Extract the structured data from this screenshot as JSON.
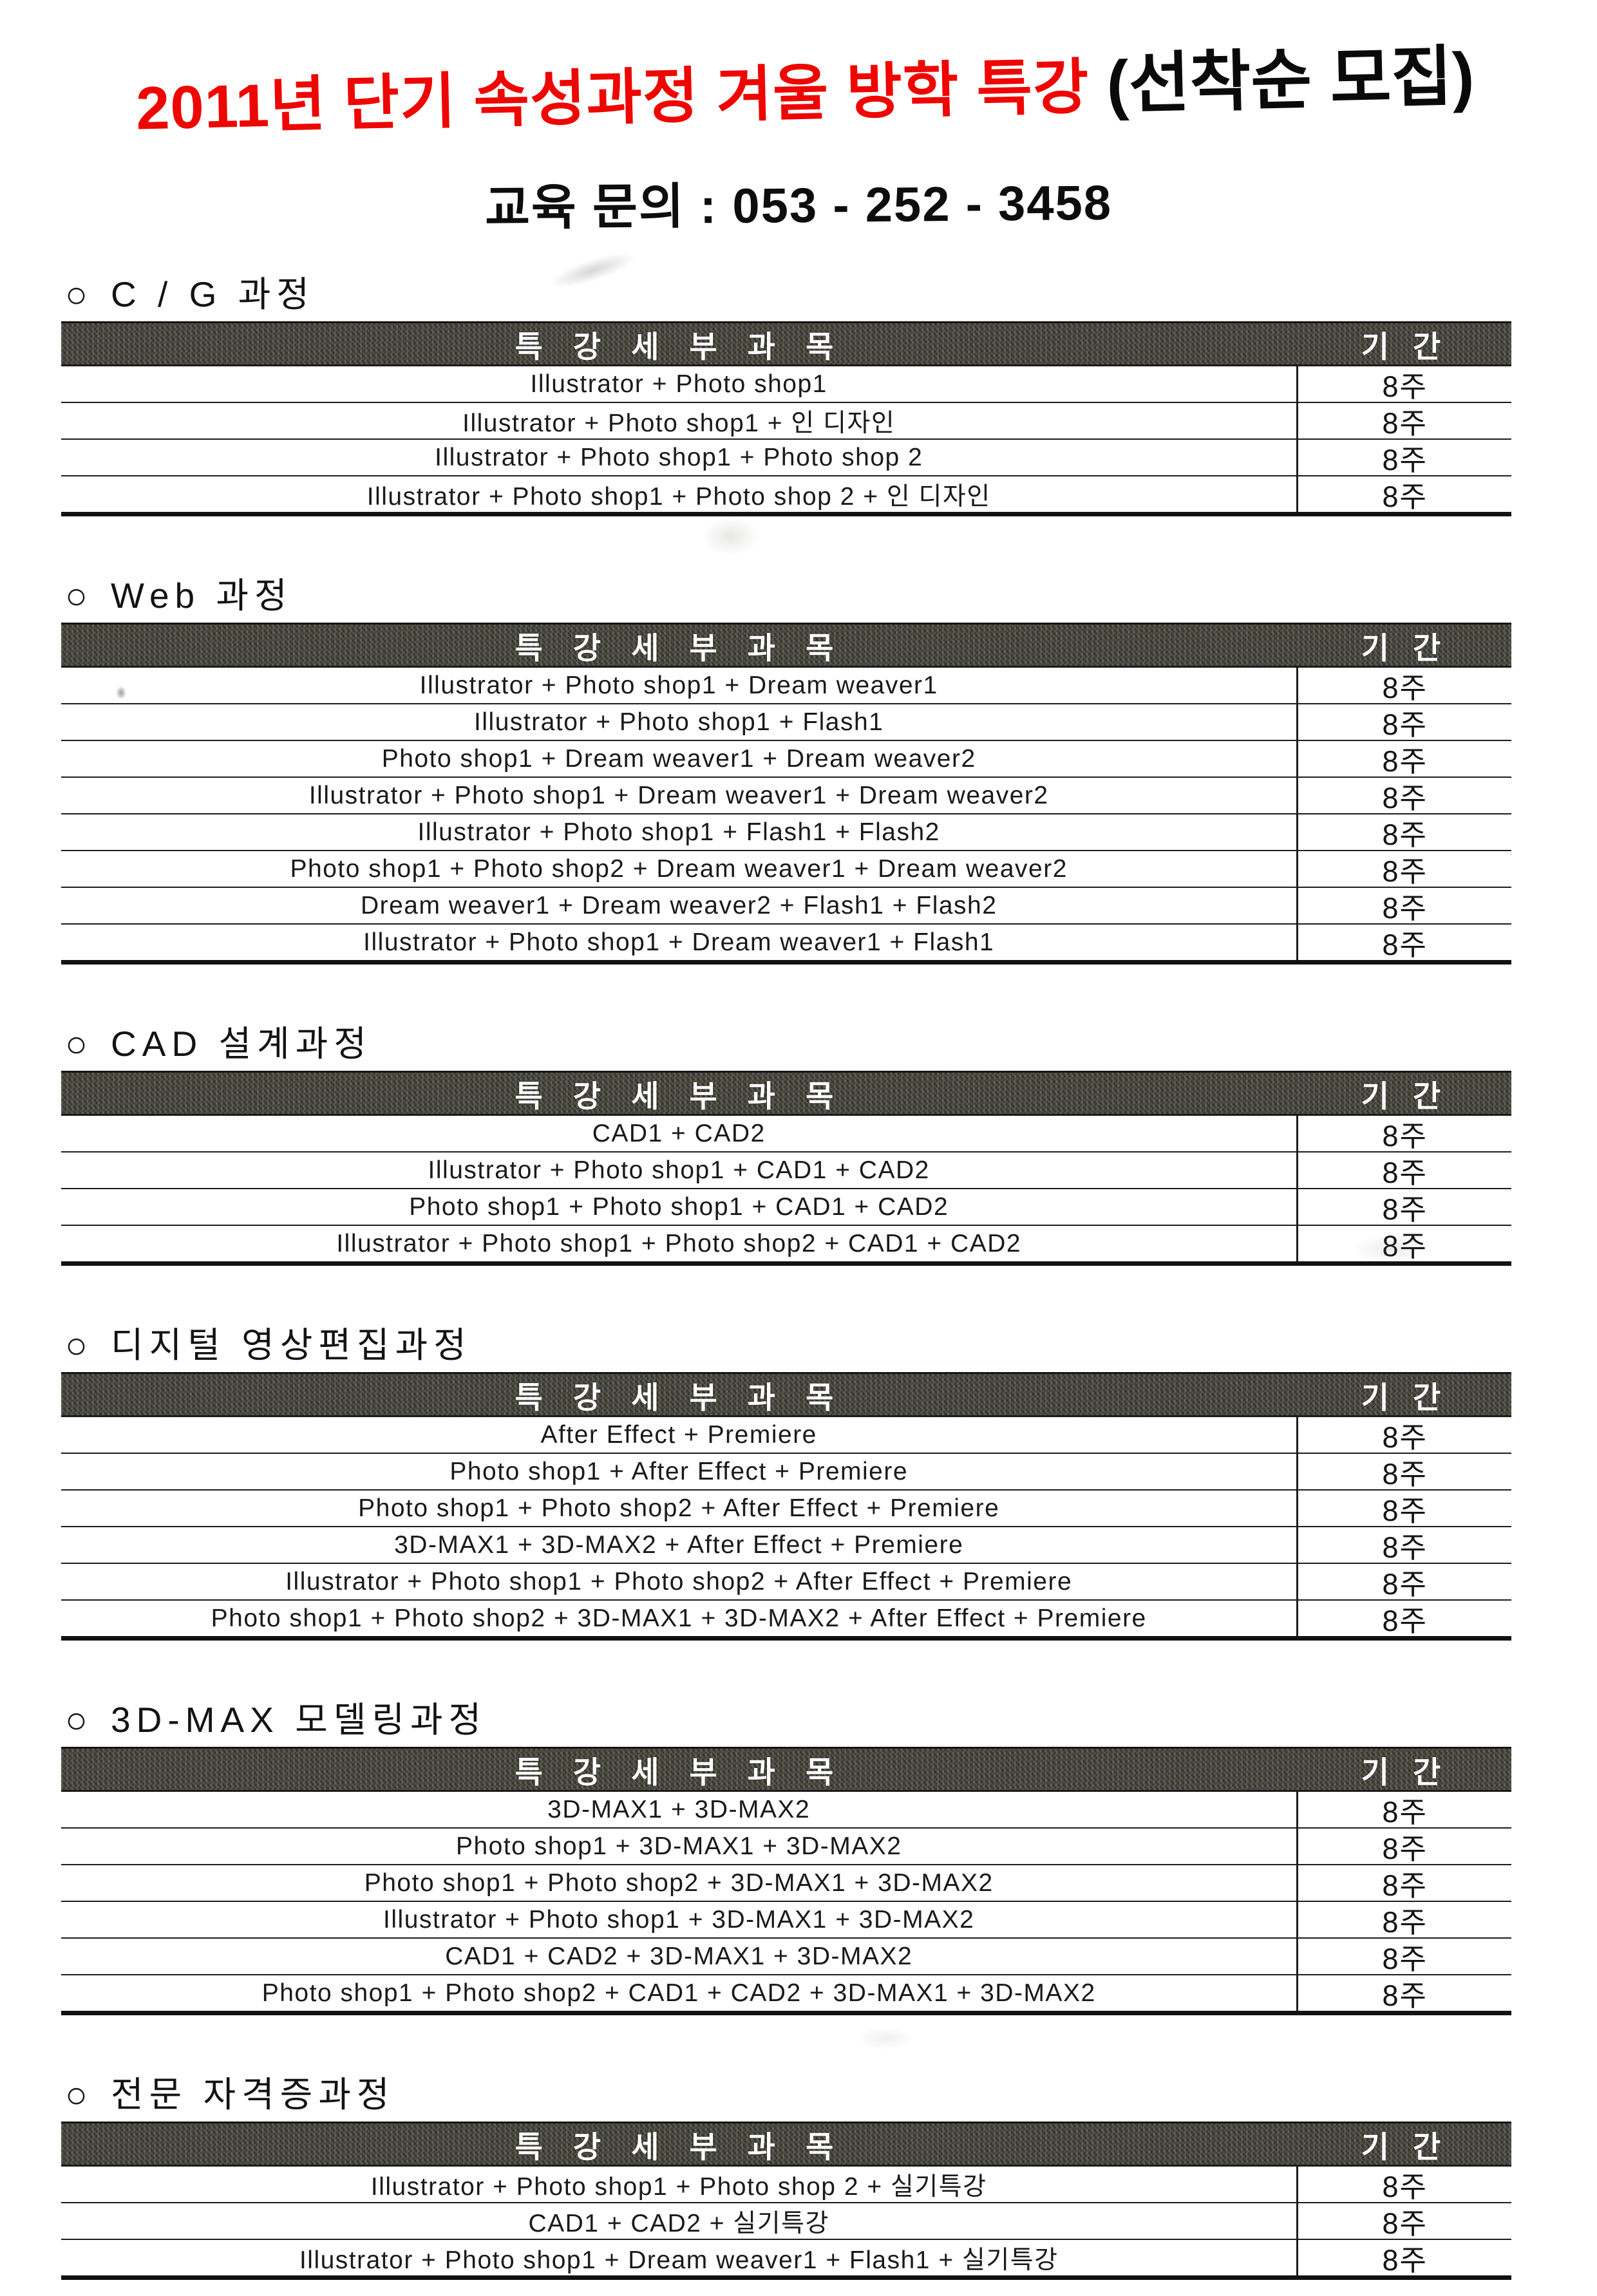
{
  "page": {
    "title_red": "2011년 단기 속성과정 겨울 방학 특강 ",
    "title_black": "(선착순 모집)",
    "phone_line": "교육 문의 : 053 - 252 - 3458",
    "bullet": "○"
  },
  "colors": {
    "title_red": "#ee0600",
    "header_bar_background": "#46453c",
    "header_bar_text": "#ffffff",
    "body_text": "#161616"
  },
  "table_header": {
    "subject": "특 강 세 부 과 목",
    "period": "기 간"
  },
  "sections": [
    {
      "title": "C / G 과정",
      "rows": [
        {
          "subject": "Illustrator + Photo shop1",
          "period": "8주"
        },
        {
          "subject": "Illustrator + Photo shop1 + 인 디자인",
          "period": "8주"
        },
        {
          "subject": "Illustrator + Photo shop1 + Photo shop 2",
          "period": "8주"
        },
        {
          "subject": "Illustrator + Photo shop1 + Photo shop 2 + 인 디자인",
          "period": "8주"
        }
      ]
    },
    {
      "title": "Web 과정",
      "rows": [
        {
          "subject": "Illustrator + Photo shop1 + Dream weaver1",
          "period": "8주"
        },
        {
          "subject": "Illustrator + Photo shop1 + Flash1",
          "period": "8주"
        },
        {
          "subject": "Photo shop1 + Dream weaver1 + Dream weaver2",
          "period": "8주"
        },
        {
          "subject": "Illustrator + Photo shop1 + Dream weaver1 + Dream weaver2",
          "period": "8주"
        },
        {
          "subject": "Illustrator + Photo shop1 + Flash1 + Flash2",
          "period": "8주"
        },
        {
          "subject": "Photo shop1 + Photo shop2 + Dream weaver1 + Dream weaver2",
          "period": "8주"
        },
        {
          "subject": "Dream weaver1 + Dream weaver2 + Flash1 + Flash2",
          "period": "8주"
        },
        {
          "subject": "Illustrator + Photo shop1 + Dream weaver1 + Flash1",
          "period": "8주"
        }
      ]
    },
    {
      "title": "CAD 설계과정",
      "rows": [
        {
          "subject": "CAD1 + CAD2",
          "period": "8주"
        },
        {
          "subject": "Illustrator + Photo shop1 + CAD1 + CAD2",
          "period": "8주"
        },
        {
          "subject": "Photo shop1 + Photo shop1 + CAD1 + CAD2",
          "period": "8주"
        },
        {
          "subject": "Illustrator + Photo shop1 + Photo shop2 + CAD1 + CAD2",
          "period": "8주"
        }
      ]
    },
    {
      "title": "디지털 영상편집과정",
      "rows": [
        {
          "subject": "After Effect + Premiere",
          "period": "8주"
        },
        {
          "subject": "Photo shop1 + After Effect + Premiere",
          "period": "8주"
        },
        {
          "subject": "Photo shop1 + Photo shop2 + After Effect + Premiere",
          "period": "8주"
        },
        {
          "subject": "3D-MAX1 + 3D-MAX2 + After Effect + Premiere",
          "period": "8주"
        },
        {
          "subject": "Illustrator + Photo shop1 + Photo shop2 + After Effect + Premiere",
          "period": "8주"
        },
        {
          "subject": "Photo shop1 + Photo shop2 + 3D-MAX1 + 3D-MAX2 + After Effect + Premiere",
          "period": "8주"
        }
      ]
    },
    {
      "title": "3D-MAX 모델링과정",
      "rows": [
        {
          "subject": "3D-MAX1 + 3D-MAX2",
          "period": "8주"
        },
        {
          "subject": "Photo shop1 + 3D-MAX1 + 3D-MAX2",
          "period": "8주"
        },
        {
          "subject": "Photo shop1 + Photo shop2 + 3D-MAX1 + 3D-MAX2",
          "period": "8주"
        },
        {
          "subject": "Illustrator + Photo shop1 + 3D-MAX1 + 3D-MAX2",
          "period": "8주"
        },
        {
          "subject": "CAD1 + CAD2 + 3D-MAX1 + 3D-MAX2",
          "period": "8주"
        },
        {
          "subject": "Photo shop1 + Photo shop2 + CAD1 + CAD2 + 3D-MAX1 + 3D-MAX2",
          "period": "8주"
        }
      ]
    },
    {
      "title": "전문 자격증과정",
      "rows": [
        {
          "subject": "Illustrator + Photo shop1 + Photo shop 2 + 실기특강",
          "period": "8주"
        },
        {
          "subject": "CAD1 + CAD2 + 실기특강",
          "period": "8주"
        },
        {
          "subject": "Illustrator + Photo shop1 + Dream weaver1 + Flash1 + 실기특강",
          "period": "8주"
        }
      ]
    }
  ]
}
